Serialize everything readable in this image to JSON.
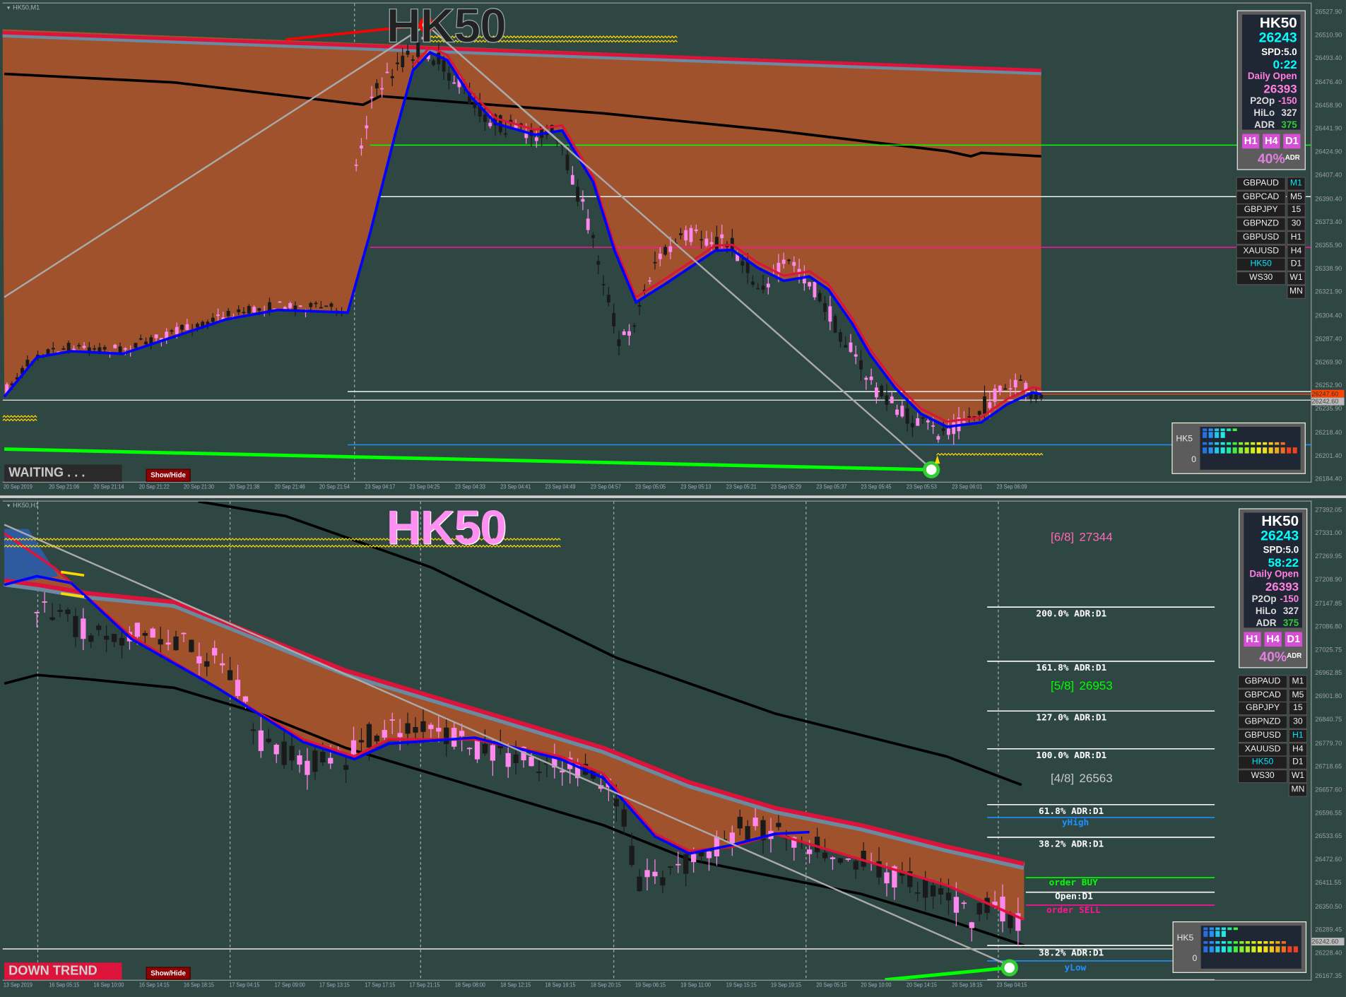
{
  "colors": {
    "background": "#2f4743",
    "fill_band": "#a0522d",
    "ma_red": "#dc143c",
    "ma_blue": "#0000ff",
    "ma_black": "#000000",
    "bear_candle": "#ff88ee",
    "bull_candle": "#1a1a1a",
    "order_buy": "#00ff00",
    "order_sell": "#ff1493",
    "y_levels": "#1e90ff"
  },
  "top_chart": {
    "title": "HK50,M1",
    "watermark": "HK50",
    "status": "WAITING . . .",
    "show_hide": "Show/Hide",
    "price_axis": [
      "26527.90",
      "26510.90",
      "26493.40",
      "26476.40",
      "26458.90",
      "26441.90",
      "26424.90",
      "26407.40",
      "26390.40",
      "26373.40",
      "26355.90",
      "26338.90",
      "26321.90",
      "26304.40",
      "26287.40",
      "26269.90",
      "26252.90",
      "26235.90",
      "26218.40",
      "26201.40",
      "26184.40"
    ],
    "price_tags": {
      "ask": "26247.60",
      "bid": "26242.60"
    },
    "time_axis": [
      "20 Sep 2019",
      "20 Sep 21:06",
      "20 Sep 21:14",
      "20 Sep 21:22",
      "20 Sep 21:30",
      "20 Sep 21:38",
      "20 Sep 21:46",
      "20 Sep 21:54",
      "23 Sep 04:17",
      "23 Sep 04:25",
      "23 Sep 04:33",
      "23 Sep 04:41",
      "23 Sep 04:49",
      "23 Sep 04:57",
      "23 Sep 05:05",
      "23 Sep 05:13",
      "23 Sep 05:21",
      "23 Sep 05:29",
      "23 Sep 05:37",
      "23 Sep 05:45",
      "23 Sep 05:53",
      "23 Sep 06:01",
      "23 Sep 06:09"
    ],
    "info": {
      "symbol": "HK50",
      "price": "26243",
      "spread": "SPD:5.0",
      "timer": "0:22",
      "daily_open_label": "Daily Open",
      "daily_open": "26393",
      "p2op_label": "P2Op",
      "p2op": "-150",
      "hilo_label": "HiLo",
      "hilo": "327",
      "adr_label": "ADR",
      "adr": "375",
      "tf_buttons": [
        "H1",
        "H4",
        "D1"
      ],
      "adr_pct": "40%",
      "adr_sup": "ADR"
    },
    "symbols": [
      "GBPAUD",
      "GBPCAD",
      "GBPJPY",
      "GBPNZD",
      "GBPUSD",
      "XAUUSD",
      "HK50",
      "WS30"
    ],
    "active_symbol": "HK50",
    "timeframes": [
      "M1",
      "M5",
      "15",
      "30",
      "H1",
      "H4",
      "D1",
      "W1",
      "MN"
    ],
    "active_timeframe": "M1",
    "widget": {
      "label_top": "HK5",
      "label_bottom": "0"
    }
  },
  "bottom_chart": {
    "title": "HK50,H1",
    "watermark": "HK50",
    "status": "DOWN TREND",
    "show_hide": "Show/Hide",
    "price_axis": [
      "27392.05",
      "27331.00",
      "27269.95",
      "27208.90",
      "27147.85",
      "27086.80",
      "27025.75",
      "26962.85",
      "26901.80",
      "26840.75",
      "26779.70",
      "26718.65",
      "26657.60",
      "26596.55",
      "26533.65",
      "26472.60",
      "26411.55",
      "26350.50",
      "26289.45",
      "26228.40",
      "26167.35"
    ],
    "price_tags": {
      "bid": "26242.60"
    },
    "time_axis": [
      "13 Sep 2019",
      "16 Sep 05:15",
      "16 Sep 10:00",
      "16 Sep 14:15",
      "16 Sep 18:15",
      "17 Sep 04:15",
      "17 Sep 09:00",
      "17 Sep 13:15",
      "17 Sep 17:15",
      "17 Sep 21:15",
      "18 Sep 08:00",
      "18 Sep 12:15",
      "18 Sep 16:15",
      "18 Sep 20:15",
      "19 Sep 06:15",
      "19 Sep 11:00",
      "19 Sep 15:15",
      "19 Sep 19:15",
      "20 Sep 05:15",
      "20 Sep 10:00",
      "20 Sep 14:15",
      "20 Sep 18:15",
      "23 Sep 04:15"
    ],
    "info": {
      "symbol": "HK50",
      "price": "26243",
      "spread": "SPD:5.0",
      "timer": "58:22",
      "daily_open_label": "Daily Open",
      "daily_open": "26393",
      "p2op_label": "P2Op",
      "p2op": "-150",
      "hilo_label": "HiLo",
      "hilo": "327",
      "adr_label": "ADR",
      "adr": "375",
      "tf_buttons": [
        "H1",
        "H4",
        "D1"
      ],
      "adr_pct": "40%",
      "adr_sup": "ADR"
    },
    "symbols": [
      "GBPAUD",
      "GBPCAD",
      "GBPJPY",
      "GBPNZD",
      "GBPUSD",
      "XAUUSD",
      "HK50",
      "WS30"
    ],
    "active_symbol": "HK50",
    "timeframes": [
      "M1",
      "M5",
      "15",
      "30",
      "H1",
      "H4",
      "D1",
      "W1",
      "MN"
    ],
    "active_timeframe": "H1",
    "widget": {
      "label_top": "HK5",
      "label_bottom": "0"
    },
    "adr_levels": [
      "200.0% ADR:D1",
      "161.8% ADR:D1",
      "127.0% ADR:D1",
      "100.0% ADR:D1",
      "61.8% ADR:D1",
      "38.2% ADR:D1",
      "38.2% ADR:D1"
    ],
    "y_high": "yHigh",
    "y_low": "yLow",
    "order_buy": "order BUY",
    "open_d1": "Open:D1",
    "order_sell": "order SELL",
    "murrey": [
      {
        "label": "[6/8]",
        "value": "27344"
      },
      {
        "label": "[5/8]",
        "value": "26953"
      },
      {
        "label": "[4/8]",
        "value": "26563"
      }
    ]
  }
}
